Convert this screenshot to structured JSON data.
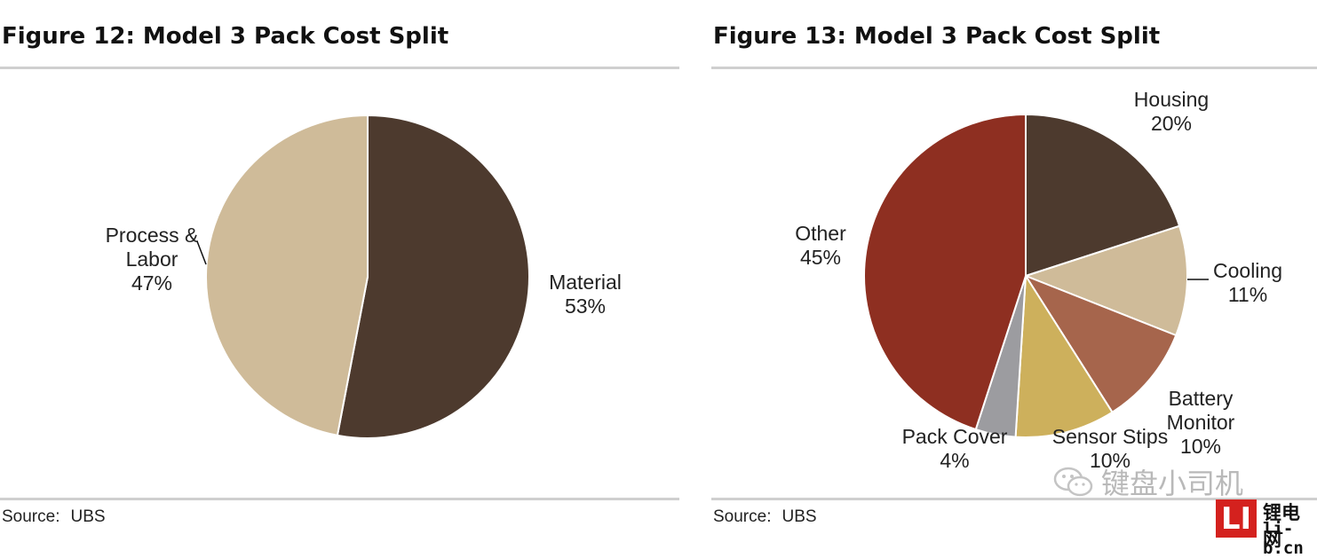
{
  "figures": [
    {
      "title": "Figure 12: Model 3 Pack Cost Split",
      "source_label": "Source:",
      "source_value": "UBS"
    },
    {
      "title": "Figure 13: Model 3 Pack Cost Split",
      "source_label": "Source:",
      "source_value": "UBS"
    }
  ],
  "chart_data": [
    {
      "type": "pie",
      "title": "Figure 12: Model 3 Pack Cost Split",
      "start": "12 o'clock, clockwise",
      "slices": [
        {
          "lines": [
            "Material"
          ],
          "pct_label": "53%",
          "value": 53,
          "color": "#4d3a2e"
        },
        {
          "lines": [
            "Process &",
            "Labor"
          ],
          "pct_label": "47%",
          "value": 47,
          "color": "#cfbb99"
        }
      ]
    },
    {
      "type": "pie",
      "title": "Figure 13: Model 3 Pack Cost Split",
      "start": "12 o'clock, clockwise",
      "slices": [
        {
          "lines": [
            "Housing"
          ],
          "pct_label": "20%",
          "value": 20,
          "color": "#4d3a2e"
        },
        {
          "lines": [
            "Cooling"
          ],
          "pct_label": "11%",
          "value": 11,
          "color": "#cfbb99"
        },
        {
          "lines": [
            "Battery",
            "Monitor"
          ],
          "pct_label": "10%",
          "value": 10,
          "color": "#a6654c"
        },
        {
          "lines": [
            "Sensor Stips"
          ],
          "pct_label": "10%",
          "value": 10,
          "color": "#cdb05c"
        },
        {
          "lines": [
            "Pack Cover"
          ],
          "pct_label": "4%",
          "value": 4,
          "color": "#9c9ca0"
        },
        {
          "lines": [
            "Other"
          ],
          "pct_label": "45%",
          "value": 45,
          "color": "#8e2f21"
        }
      ]
    }
  ],
  "watermark": {
    "text": "键盘小司机"
  },
  "logo": {
    "mark": "LI",
    "name_cn": "锂电网",
    "domain": "li-b.cn"
  }
}
